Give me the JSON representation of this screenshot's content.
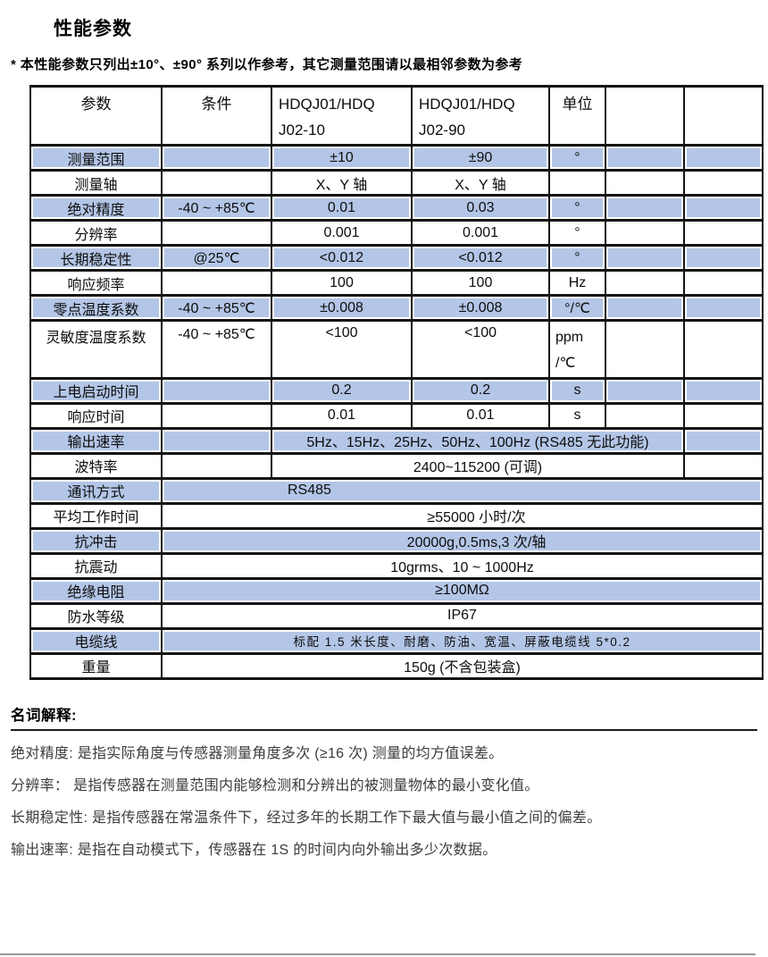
{
  "page": {
    "title": "性能参数",
    "note": "* 本性能参数只列出±10°、±90° 系列以作参考，其它测量范围请以最相邻参数为参考"
  },
  "table": {
    "header": [
      "参数",
      "条件",
      "HDQJ01/HDQ\nJ02-10",
      "HDQJ01/HDQ\nJ02-90",
      "单位",
      "",
      ""
    ],
    "rows": [
      {
        "type": "normal",
        "blue": true,
        "c": [
          "测量范围",
          "",
          "±10",
          "±90",
          "°"
        ]
      },
      {
        "type": "normal",
        "blue": false,
        "c": [
          "测量轴",
          "",
          "X、Y 轴",
          "X、Y 轴",
          ""
        ]
      },
      {
        "type": "normal",
        "blue": true,
        "c": [
          "绝对精度",
          "-40 ~ +85℃",
          "0.01",
          "0.03",
          "°"
        ]
      },
      {
        "type": "normal",
        "blue": false,
        "c": [
          "分辨率",
          "",
          "0.001",
          "0.001",
          "°"
        ]
      },
      {
        "type": "normal",
        "blue": true,
        "c": [
          "长期稳定性",
          "@25℃",
          "<0.012",
          "<0.012",
          "°"
        ]
      },
      {
        "type": "normal",
        "blue": false,
        "c": [
          "响应频率",
          "",
          "100",
          "100",
          "Hz"
        ]
      },
      {
        "type": "normal",
        "blue": true,
        "c": [
          "零点温度系数",
          "-40 ~ +85℃",
          "±0.008",
          "±0.008",
          "°/℃"
        ]
      },
      {
        "type": "normal",
        "blue": false,
        "top": true,
        "unit_left": true,
        "c": [
          "灵敏度温度系数",
          "-40 ~ +85℃",
          "<100",
          "<100",
          "ppm\n/℃"
        ]
      },
      {
        "type": "normal",
        "blue": true,
        "c": [
          "上电启动时间",
          "",
          "0.2",
          "0.2",
          "s"
        ]
      },
      {
        "type": "normal",
        "blue": false,
        "c": [
          "响应时间",
          "",
          "0.01",
          "0.01",
          "s"
        ]
      },
      {
        "type": "mid",
        "blue": true,
        "c": [
          "输出速率",
          "5Hz、15Hz、25Hz、50Hz、100Hz (RS485 无此功能)"
        ]
      },
      {
        "type": "mid",
        "blue": false,
        "c": [
          "波特率",
          "2400~115200 (可调)"
        ]
      },
      {
        "type": "wide",
        "blue": true,
        "cls": "offset",
        "c": [
          "通讯方式",
          "RS485"
        ]
      },
      {
        "type": "wide",
        "blue": false,
        "cls": "shift",
        "c": [
          "平均工作时间",
          "≥55000 小时/次"
        ]
      },
      {
        "type": "wide",
        "blue": true,
        "cls": "shift",
        "c": [
          "抗冲击",
          "20000g,0.5ms,3 次/轴"
        ]
      },
      {
        "type": "wide",
        "blue": false,
        "c": [
          "抗震动",
          "10grms、10 ~ 1000Hz"
        ]
      },
      {
        "type": "wide",
        "blue": true,
        "c": [
          "绝缘电阻",
          "≥100MΩ"
        ]
      },
      {
        "type": "wide",
        "blue": false,
        "c": [
          "防水等级",
          "IP67"
        ]
      },
      {
        "type": "wide",
        "blue": true,
        "cls": "small",
        "c": [
          "电缆线",
          "标配 1.5 米长度、耐磨、防油、宽温、屏蔽电缆线 5*0.2"
        ]
      },
      {
        "type": "wide",
        "blue": false,
        "c": [
          "重量",
          "150g (不含包装盒)"
        ]
      }
    ]
  },
  "glossary": {
    "heading": "名词解释:",
    "items": [
      "绝对精度: 是指实际角度与传感器测量角度多次 (≥16 次) 测量的均方值误差。",
      "分辨率：  是指传感器在测量范围内能够检测和分辨出的被测量物体的最小变化值。",
      "长期稳定性: 是指传感器在常温条件下，经过多年的长期工作下最大值与最小值之间的偏差。",
      "输出速率: 是指在自动模式下，传感器在 1S 的时间内向外输出多少次数据。"
    ]
  },
  "colors": {
    "row_highlight": "#b4c6e7",
    "border": "#141414"
  }
}
